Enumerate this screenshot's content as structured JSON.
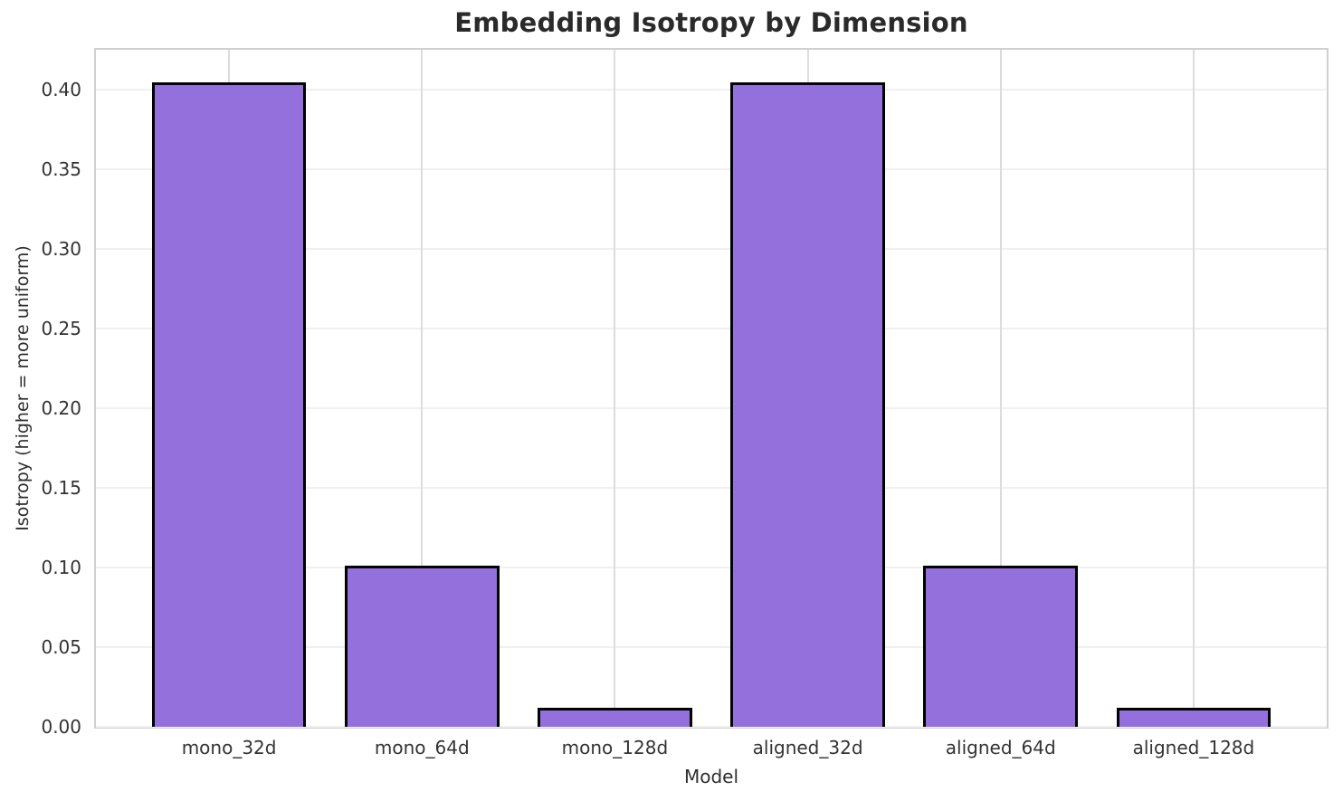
{
  "figure": {
    "title": "Embedding Isotropy by Dimension"
  },
  "chart_data": {
    "type": "bar",
    "title": "Embedding Isotropy by Dimension",
    "xlabel": "Model",
    "ylabel": "Isotropy (higher = more uniform)",
    "categories": [
      "mono_32d",
      "mono_64d",
      "mono_128d",
      "aligned_32d",
      "aligned_64d",
      "aligned_128d"
    ],
    "values": [
      0.405,
      0.101,
      0.012,
      0.405,
      0.101,
      0.012
    ],
    "ylim": [
      0,
      0.42525
    ],
    "yticks": [
      0.0,
      0.05,
      0.1,
      0.15,
      0.2,
      0.25,
      0.3,
      0.35,
      0.4
    ],
    "ytick_labels": [
      "0.00",
      "0.05",
      "0.10",
      "0.15",
      "0.20",
      "0.25",
      "0.30",
      "0.35",
      "0.40"
    ],
    "grid": true,
    "legend_position": "none",
    "bar_fill_color": "#9370DB",
    "bar_edge_color": "#000000"
  }
}
